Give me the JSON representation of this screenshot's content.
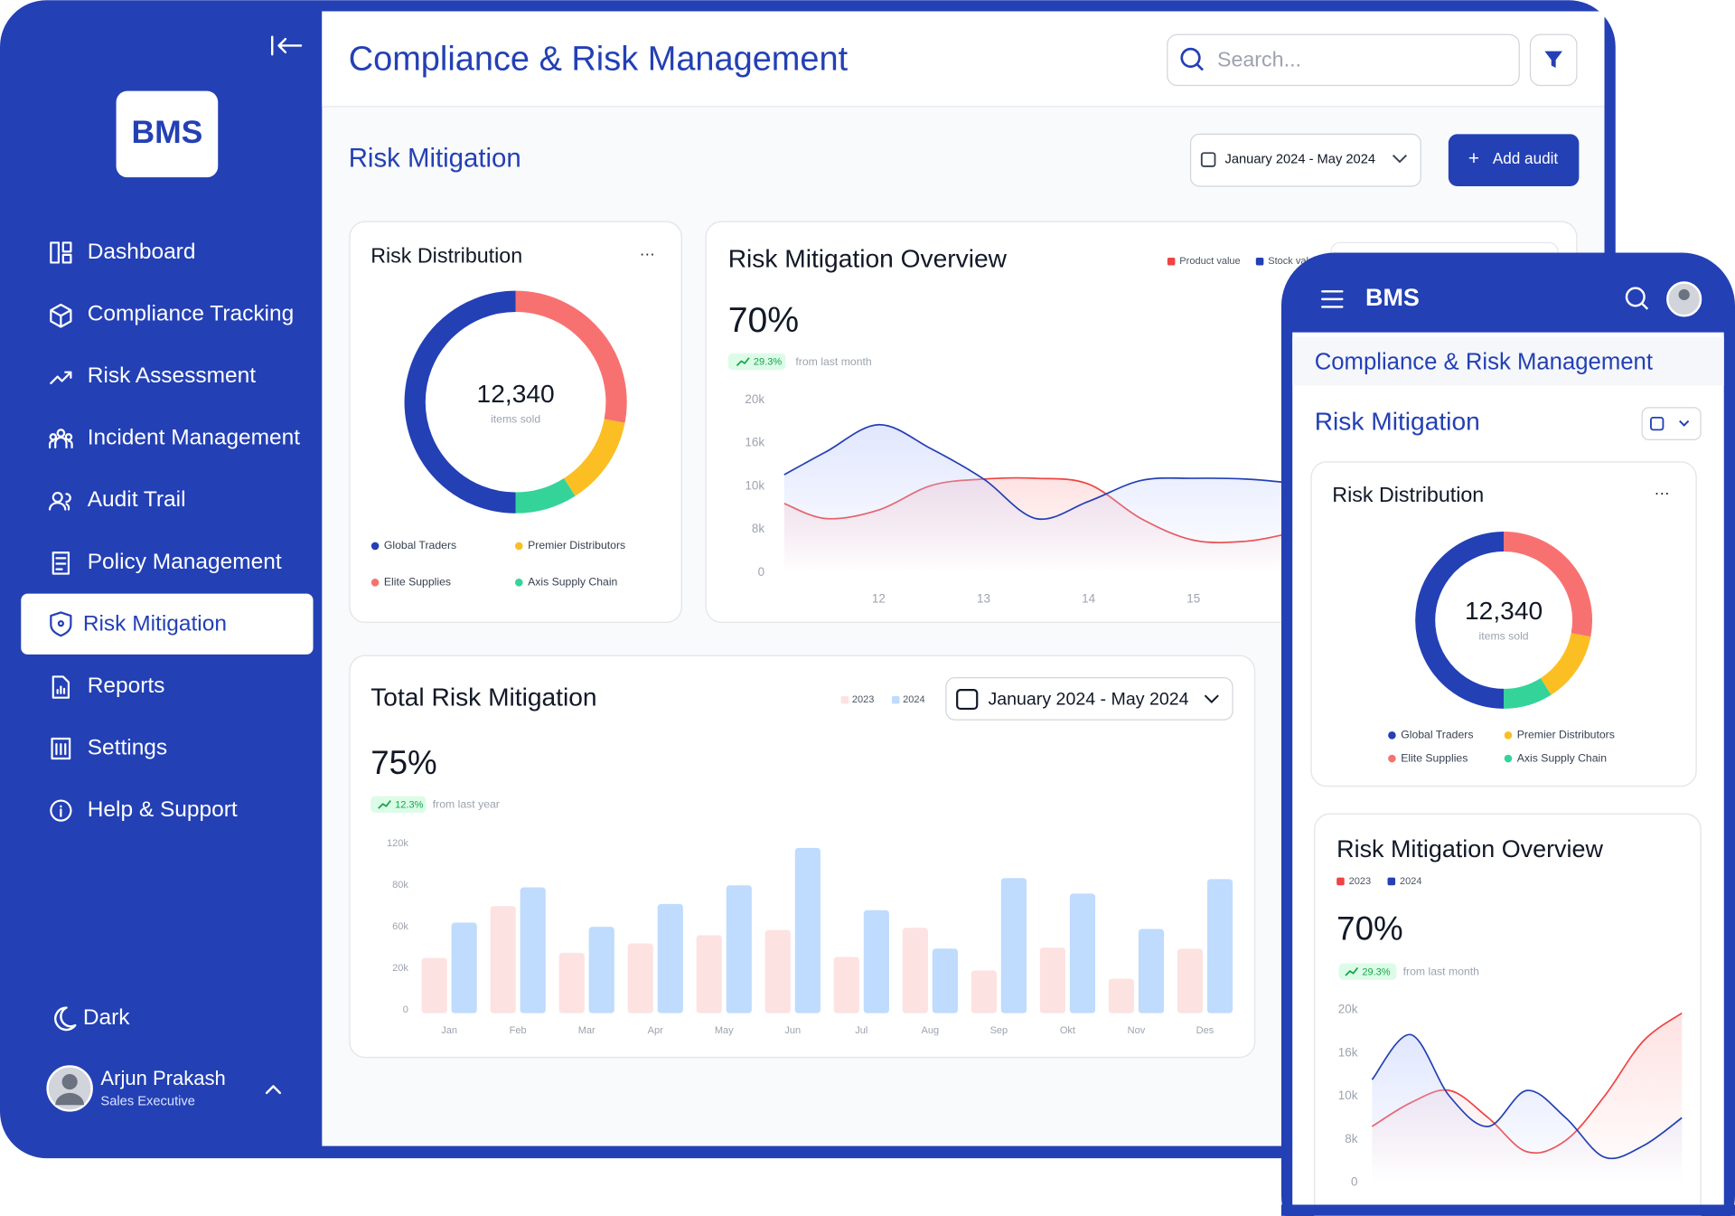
{
  "sidebar": {
    "logo": "BMS",
    "nav": [
      {
        "label": "Dashboard"
      },
      {
        "label": "Compliance Tracking"
      },
      {
        "label": "Risk Assessment"
      },
      {
        "label": "Incident Management"
      },
      {
        "label": "Audit Trail"
      },
      {
        "label": "Policy Management"
      },
      {
        "label": "Risk Mitigation",
        "active": true
      },
      {
        "label": "Reports"
      },
      {
        "label": "Settings"
      },
      {
        "label": "Help & Support"
      }
    ],
    "theme_toggle": "Dark",
    "user": {
      "name": "Arjun Prakash",
      "role": "Sales Executive"
    }
  },
  "header": {
    "title": "Compliance & Risk Management",
    "search_placeholder": "Search..."
  },
  "page": {
    "title": "Risk Mitigation",
    "date_range": "January 2024 - May 2024",
    "add_button": "Add audit"
  },
  "risk_distribution": {
    "type": "pie",
    "title": "Risk Distribution",
    "menu": "···",
    "total": "12,340",
    "total_caption": "items sold",
    "categories": [
      "Elite Supplies",
      "Premier Distributors",
      "Axis Supply Chain",
      "Global Traders"
    ],
    "values": [
      28,
      13,
      9,
      50
    ],
    "colors": [
      "#f87171",
      "#fbbf24",
      "#34d399",
      "#2340b5"
    ]
  },
  "risk_mitigation_overview": {
    "type": "line",
    "title": "Risk Mitigation Overview",
    "value": "70%",
    "change": "29.3%",
    "change_caption": "from last month",
    "x": [
      11.1,
      11.5,
      12.0,
      12.5,
      13.0,
      13.5,
      14.0,
      14.5,
      15.0,
      15.5,
      15.9
    ],
    "xlim": [
      11.05,
      15.9
    ],
    "xticks": [
      12,
      13,
      14,
      15
    ],
    "ylim": [
      0,
      20000
    ],
    "yticks": [
      0,
      {
        "value": 8000,
        "label": "8k"
      },
      {
        "value": 10000,
        "label": "10k"
      },
      {
        "value": 16000,
        "label": "16k"
      },
      {
        "value": 20000,
        "label": "20k"
      }
    ],
    "series": [
      {
        "name": "Product value",
        "color": "#ef4444",
        "values": [
          9200,
          8500,
          8900,
          10100,
          11000,
          11100,
          10300,
          8500,
          6000,
          5800,
          7200
        ]
      },
      {
        "name": "Stock value",
        "color": "#2340b5",
        "values": [
          11600,
          14800,
          17700,
          15200,
          11000,
          8500,
          9300,
          10800,
          11100,
          11000,
          10500
        ]
      }
    ]
  },
  "total_risk_mitigation": {
    "type": "bar",
    "title": "Total Risk Mitigation",
    "value": "75%",
    "change": "12.3%",
    "change_caption": "from last year",
    "date_range": "January 2024 - May 2024",
    "categories": [
      "Jan",
      "Feb",
      "Mar",
      "Apr",
      "May",
      "Jun",
      "Jul",
      "Aug",
      "Sep",
      "Okt",
      "Nov",
      "Des"
    ],
    "ylim": [
      0,
      120000
    ],
    "yticks": [
      0,
      {
        "value": 20000,
        "label": "20k"
      },
      {
        "value": 60000,
        "label": "60k"
      },
      {
        "value": 80000,
        "label": "80k"
      },
      {
        "value": 120000,
        "label": "120k"
      }
    ],
    "series": [
      {
        "name": "2023",
        "color": "#fde2e2",
        "values": [
          30000,
          70000,
          35000,
          44000,
          52000,
          57000,
          31000,
          59000,
          19000,
          40000,
          15000,
          39000
        ]
      },
      {
        "name": "2024",
        "color": "#bfdbfe",
        "values": [
          62000,
          79000,
          60000,
          71000,
          80000,
          116000,
          68000,
          39000,
          87000,
          76000,
          58000,
          86000
        ]
      }
    ]
  },
  "mobile": {
    "logo": "BMS",
    "title": "Compliance & Risk Management",
    "page_title": "Risk Mitigation",
    "risk_distribution": {
      "type": "pie",
      "title": "Risk Distribution",
      "menu": "···",
      "total": "12,340",
      "total_caption": "items sold",
      "categories": [
        "Elite Supplies",
        "Premier Distributors",
        "Axis Supply Chain",
        "Global Traders"
      ],
      "values": [
        28,
        13,
        9,
        50
      ],
      "colors": [
        "#f87171",
        "#fbbf24",
        "#34d399",
        "#2340b5"
      ]
    },
    "risk_mitigation_overview": {
      "type": "line",
      "title": "Risk Mitigation Overview",
      "value": "70%",
      "change": "29.3%",
      "change_caption": "from last month",
      "categories": [
        null,
        null,
        null,
        null,
        null,
        null,
        null,
        null,
        null
      ],
      "ylim": [
        0,
        20000
      ],
      "yticks": [
        0,
        {
          "value": 8000,
          "label": "8k"
        },
        {
          "value": 10000,
          "label": "10k"
        },
        {
          "value": 16000,
          "label": "16k"
        },
        {
          "value": 20000,
          "label": "20k"
        }
      ],
      "series": [
        {
          "name": "2023",
          "color": "#ef4444",
          "values": [
            8600,
            9700,
            10800,
            9000,
            5700,
            7800,
            10000,
            17100,
            19700
          ]
        },
        {
          "name": "2024",
          "color": "#2340b5",
          "values": [
            12300,
            17700,
            10000,
            8600,
            10800,
            9000,
            4700,
            6800,
            9000
          ]
        }
      ]
    }
  }
}
